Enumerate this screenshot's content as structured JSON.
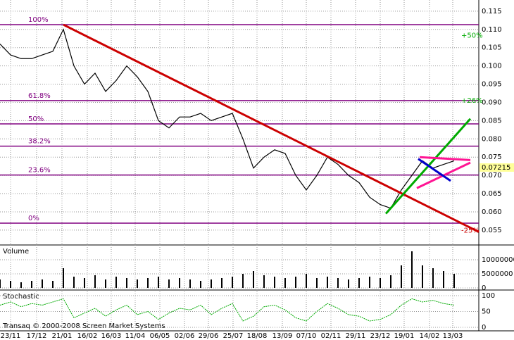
{
  "chart_data": [
    {
      "type": "price",
      "title": "Transaq © 2000-2008 Screen Market Systems",
      "x": [
        0,
        15,
        30,
        45,
        60,
        75,
        90,
        105,
        120,
        135,
        150,
        165,
        180,
        195,
        210,
        225,
        240,
        255,
        270,
        285,
        300,
        315,
        330,
        345,
        360,
        375,
        390,
        405,
        420,
        435,
        450,
        465,
        480,
        495,
        510,
        525,
        540,
        555,
        570,
        585,
        600,
        615,
        630,
        645
      ],
      "xlim": [
        0,
        680
      ],
      "xticks": [
        {
          "value": 15,
          "label": "23/11"
        },
        {
          "value": 52,
          "label": "17/12"
        },
        {
          "value": 88,
          "label": "21/01"
        },
        {
          "value": 124,
          "label": "16/02"
        },
        {
          "value": 158,
          "label": "16/03"
        },
        {
          "value": 192,
          "label": "11/04"
        },
        {
          "value": 227,
          "label": "06/05"
        },
        {
          "value": 262,
          "label": "02/06"
        },
        {
          "value": 296,
          "label": "29/06"
        },
        {
          "value": 331,
          "label": "25/07"
        },
        {
          "value": 365,
          "label": "18/08"
        },
        {
          "value": 401,
          "label": "13/09"
        },
        {
          "value": 435,
          "label": "07/10"
        },
        {
          "value": 470,
          "label": "02/11"
        },
        {
          "value": 505,
          "label": "29/11"
        },
        {
          "value": 540,
          "label": "23/12"
        },
        {
          "value": 574,
          "label": "19/01"
        },
        {
          "value": 610,
          "label": "14/02"
        },
        {
          "value": 643,
          "label": "13/03"
        }
      ],
      "series": [
        {
          "color": "#000000",
          "values": [
            0.106,
            0.103,
            0.102,
            0.102,
            0.103,
            0.104,
            0.11,
            0.1,
            0.095,
            0.098,
            0.093,
            0.096,
            0.1,
            0.097,
            0.093,
            0.085,
            0.083,
            0.086,
            0.086,
            0.087,
            0.085,
            0.086,
            0.087,
            0.08,
            0.072,
            0.075,
            0.077,
            0.076,
            0.07,
            0.066,
            0.07,
            0.075,
            0.073,
            0.07,
            0.068,
            0.064,
            0.062,
            0.061,
            0.066,
            0.07,
            0.074,
            0.072,
            0.073,
            0.074
          ]
        }
      ],
      "ylim": [
        0.0515,
        0.1171
      ],
      "yticks": [
        0.115,
        {
          "value": 0.11,
          "label": "0.110"
        },
        0.105,
        {
          "value": 0.1,
          "label": "0.100"
        },
        0.095,
        {
          "value": 0.09,
          "label": "0.090"
        },
        0.085,
        {
          "value": 0.08,
          "label": "0.080"
        },
        0.075,
        {
          "value": 0.07,
          "label": "0.070"
        },
        0.065,
        {
          "value": 0.06,
          "label": "0.060"
        },
        0.055
      ],
      "grid": true,
      "levels": [
        {
          "text": "100%",
          "price": 0.1113
        },
        {
          "text": "61.8%",
          "price": 0.0905
        },
        {
          "text": "50%",
          "price": 0.0841
        },
        {
          "text": "38.2%",
          "price": 0.078
        },
        {
          "text": "23.6%",
          "price": 0.0701
        },
        {
          "text": "0%",
          "price": 0.0569
        }
      ],
      "level_color": "#800080",
      "trendlines": [
        {
          "color": "#cc0000",
          "x": [
            90,
            680
          ],
          "y": [
            0.1113,
            0.0545
          ]
        },
        {
          "color": "#00aa00",
          "x": [
            548,
            668
          ],
          "y": [
            0.0595,
            0.0855
          ]
        },
        {
          "color": "#ff1493",
          "x": [
            596,
            668
          ],
          "y": [
            0.075,
            0.0742
          ]
        },
        {
          "color": "#ff1493",
          "x": [
            592,
            668
          ],
          "y": [
            0.0665,
            0.0735
          ]
        },
        {
          "color": "#0000cc",
          "x": [
            594,
            640
          ],
          "y": [
            0.0745,
            0.0685
          ]
        }
      ],
      "annotations": [
        {
          "text": "+50%",
          "x": 655,
          "price": 0.1083,
          "color": "#00aa00"
        },
        {
          "text": "+26%",
          "x": 655,
          "price": 0.0905,
          "color": "#00aa00"
        },
        {
          "text": "-25%",
          "x": 655,
          "price": 0.0549,
          "color": "#cc0000"
        }
      ],
      "last_price": {
        "text": "0.07215",
        "price": 0.07215
      }
    },
    {
      "type": "bar",
      "title": "Volume",
      "color": "#000000",
      "values": [
        3000000,
        2500000,
        2000000,
        2500000,
        3000000,
        2500000,
        7000000,
        4000000,
        3500000,
        4500000,
        3000000,
        4000000,
        3500000,
        3000000,
        3500000,
        4000000,
        3000000,
        3500000,
        3000000,
        2500000,
        3000000,
        3500000,
        4000000,
        5000000,
        6000000,
        4500000,
        4000000,
        3500000,
        4000000,
        5000000,
        3500000,
        4000000,
        3500000,
        3000000,
        3500000,
        4000000,
        3500000,
        4500000,
        8000000,
        13000000,
        8000000,
        7000000,
        6000000,
        5000000
      ],
      "ylim": [
        0,
        14250000
      ],
      "yticks": [
        10000000,
        5000000,
        0
      ]
    },
    {
      "type": "line",
      "title": "Stochastic",
      "color": "#00aa00",
      "values": [
        70,
        80,
        65,
        75,
        70,
        80,
        90,
        30,
        45,
        60,
        35,
        55,
        70,
        40,
        50,
        25,
        45,
        60,
        55,
        70,
        40,
        60,
        75,
        20,
        35,
        65,
        70,
        55,
        30,
        20,
        50,
        75,
        60,
        40,
        35,
        20,
        25,
        40,
        70,
        90,
        80,
        85,
        75,
        70
      ],
      "ylim": [
        -6.7,
        111
      ],
      "yticks": [
        100,
        50,
        0
      ]
    }
  ]
}
